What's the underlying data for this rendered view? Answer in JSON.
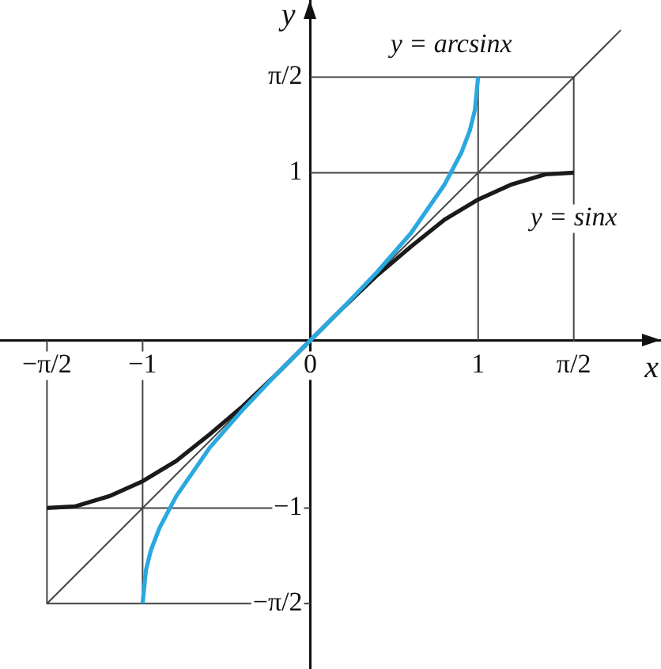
{
  "chart_data": {
    "type": "line",
    "xlabel": "x",
    "ylabel": "y",
    "xlim": [
      -1.85,
      2.09
    ],
    "ylim": [
      -1.96,
      2.03
    ],
    "xticks": [
      {
        "value": -1.57,
        "label": "−π/2"
      },
      {
        "value": -1,
        "label": "−1"
      },
      {
        "value": 0,
        "label": "0"
      },
      {
        "value": 1,
        "label": "1"
      },
      {
        "value": 1.57,
        "label": "π/2"
      }
    ],
    "yticks": [
      {
        "value": -1.57,
        "label": "−π/2"
      },
      {
        "value": -1,
        "label": "−1"
      },
      {
        "value": 1,
        "label": "1"
      },
      {
        "value": 1.57,
        "label": "π/2"
      }
    ],
    "marker": "none",
    "legend": false,
    "grid": false,
    "series": [
      {
        "color": "#2aa8e0",
        "x": [
          -1,
          -0.98,
          -0.95,
          -0.9,
          -0.8,
          -0.6,
          -0.4,
          -0.2,
          0,
          0.2,
          0.4,
          0.6,
          0.8,
          0.9,
          0.95,
          0.98,
          1
        ],
        "values": [
          -1.57,
          -1.37,
          -1.25,
          -1.12,
          -0.93,
          -0.64,
          -0.41,
          -0.2,
          0,
          0.2,
          0.41,
          0.64,
          0.93,
          1.12,
          1.25,
          1.37,
          1.57
        ]
      },
      {
        "color": "#1a1a1a",
        "x": [
          -1.57,
          -1.4,
          -1.2,
          -1,
          -0.8,
          -0.6,
          -0.4,
          -0.2,
          0,
          0.2,
          0.4,
          0.6,
          0.8,
          1,
          1.2,
          1.4,
          1.57
        ],
        "values": [
          -1,
          -0.99,
          -0.93,
          -0.84,
          -0.72,
          -0.56,
          -0.39,
          -0.2,
          0,
          0.2,
          0.39,
          0.56,
          0.72,
          0.84,
          0.93,
          0.99,
          1
        ]
      },
      {
        "color": "#444444",
        "x": [
          -1.57,
          1.85
        ],
        "values": [
          -1.57,
          1.85
        ]
      },
      {
        "color": "#444444",
        "x": [
          0,
          1.57,
          1.57
        ],
        "values": [
          1.57,
          1.57,
          0
        ]
      },
      {
        "color": "#444444",
        "x": [
          1,
          1
        ],
        "values": [
          0,
          1.57
        ]
      },
      {
        "color": "#444444",
        "x": [
          0,
          1.57
        ],
        "values": [
          1,
          1
        ]
      },
      {
        "color": "#444444",
        "x": [
          0,
          -1.57,
          -1.57
        ],
        "values": [
          -1.57,
          -1.57,
          0
        ]
      },
      {
        "color": "#444444",
        "x": [
          -1,
          -1
        ],
        "values": [
          0,
          -1.57
        ]
      },
      {
        "color": "#444444",
        "x": [
          0,
          -1.57
        ],
        "values": [
          -1,
          -1
        ]
      }
    ],
    "annotations": [
      "y = arcsinx",
      "y = sinx"
    ]
  }
}
